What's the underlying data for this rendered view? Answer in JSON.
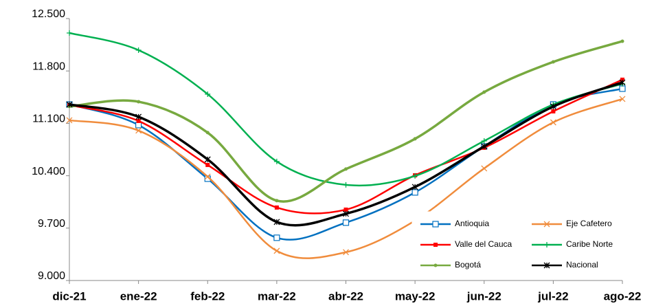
{
  "chart_data": {
    "type": "line",
    "categories": [
      "dic-21",
      "ene-22",
      "feb-22",
      "mar-22",
      "abr-22",
      "may-22",
      "jun-22",
      "jul-22",
      "ago-22"
    ],
    "ylim": [
      9000,
      12500
    ],
    "yticks": [
      {
        "value": 9000,
        "label": "9.000"
      },
      {
        "value": 9700,
        "label": "9.700"
      },
      {
        "value": 10400,
        "label": "10.400"
      },
      {
        "value": 11100,
        "label": "11.100"
      },
      {
        "value": 11800,
        "label": "11.800"
      },
      {
        "value": 12500,
        "label": "12.500"
      }
    ],
    "legend": "lower right",
    "series": [
      {
        "name": "Antioquia",
        "color": "#0070c0",
        "marker": "open-square",
        "values": [
          11352,
          11077,
          10360,
          9571,
          9773,
          10177,
          10792,
          11352,
          11563
        ]
      },
      {
        "name": "Eje Cafetero",
        "color": "#f08c3c",
        "marker": "x",
        "values": [
          11141,
          11003,
          10388,
          9396,
          9378,
          9800,
          10498,
          11113,
          11426
        ]
      },
      {
        "name": "Valle del Cauca",
        "color": "#ff0000",
        "marker": "square",
        "values": [
          11343,
          11132,
          10544,
          9975,
          9947,
          10406,
          10774,
          11260,
          11683
        ]
      },
      {
        "name": "Caribe Norte",
        "color": "#00b050",
        "marker": "plus",
        "values": [
          12307,
          12078,
          11490,
          10590,
          10278,
          10397,
          10865,
          11352,
          11628
        ]
      },
      {
        "name": "Bogotá",
        "color": "#77a93f",
        "marker": "circle",
        "values": [
          11325,
          11389,
          10976,
          10067,
          10489,
          10893,
          11517,
          11921,
          12197
        ]
      },
      {
        "name": "Nacional",
        "color": "#000000",
        "marker": "star",
        "values": [
          11352,
          11187,
          10618,
          9782,
          9892,
          10250,
          10792,
          11325,
          11646
        ]
      }
    ]
  }
}
